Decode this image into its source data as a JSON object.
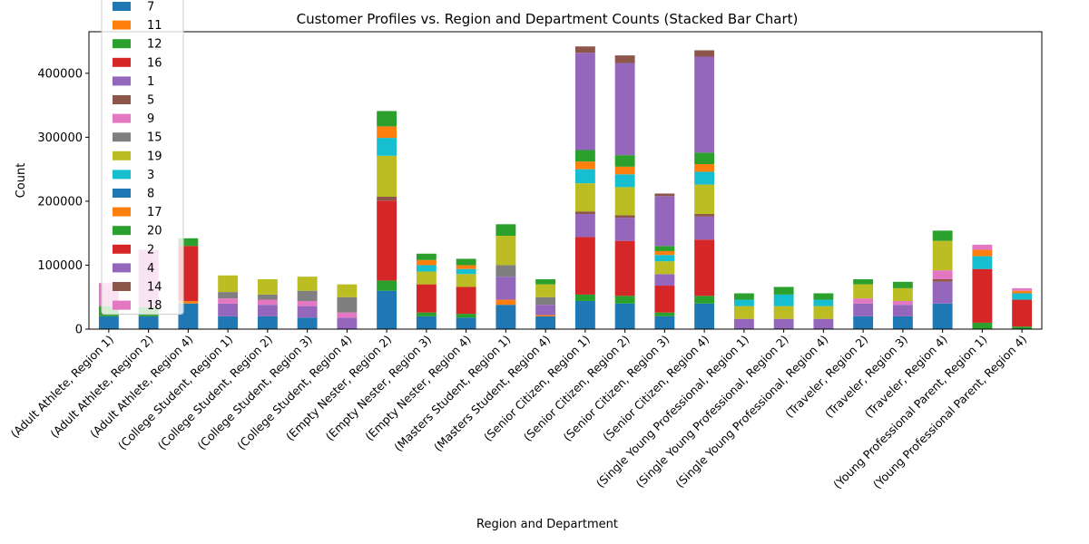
{
  "chart_data": {
    "type": "bar",
    "stacked": true,
    "title": "Customer Profiles vs. Region and Department Counts (Stacked Bar Chart)",
    "xlabel": "Region and Department",
    "ylabel": "Count",
    "ylim": [
      0,
      465000
    ],
    "yticks": [
      0,
      100000,
      200000,
      300000,
      400000
    ],
    "grid": false,
    "legend_position": "upper-left",
    "categories": [
      "(Adult Athlete, Region 1)",
      "(Adult Athlete, Region 2)",
      "(Adult Athlete, Region 4)",
      "(College Student, Region 1)",
      "(College Student, Region 2)",
      "(College Student, Region 3)",
      "(College Student, Region 4)",
      "(Empty Nester, Region 2)",
      "(Empty Nester, Region 3)",
      "(Empty Nester, Region 4)",
      "(Masters Student, Region 1)",
      "(Masters Student, Region 4)",
      "(Senior Citizen, Region 1)",
      "(Senior Citizen, Region 2)",
      "(Senior Citizen, Region 3)",
      "(Senior Citizen, Region 4)",
      "(Single Young Professional, Region 1)",
      "(Single Young Professional, Region 2)",
      "(Single Young Professional, Region 4)",
      "(Traveler, Region 2)",
      "(Traveler, Region 3)",
      "(Traveler, Region 4)",
      "(Young Professional Parent, Region 1)",
      "(Young Professional Parent, Region 4)"
    ],
    "series": [
      {
        "name": "7",
        "color": "#1f77b4",
        "values": [
          20000,
          20000,
          40000,
          20000,
          20000,
          18000,
          0,
          60000,
          20000,
          18000,
          38000,
          20000,
          44000,
          40000,
          20000,
          40000,
          0,
          0,
          0,
          20000,
          20000,
          40000,
          0,
          0
        ]
      },
      {
        "name": "11",
        "color": "#ff7f0e",
        "values": [
          0,
          0,
          4000,
          0,
          0,
          0,
          0,
          0,
          0,
          0,
          8000,
          2000,
          0,
          0,
          0,
          0,
          0,
          0,
          0,
          0,
          0,
          0,
          0,
          0
        ]
      },
      {
        "name": "12",
        "color": "#2ca02c",
        "values": [
          0,
          0,
          0,
          0,
          0,
          0,
          0,
          16000,
          6000,
          6000,
          0,
          0,
          10000,
          12000,
          6000,
          12000,
          0,
          0,
          0,
          0,
          0,
          0,
          10000,
          4000
        ]
      },
      {
        "name": "16",
        "color": "#d62728",
        "values": [
          0,
          0,
          86000,
          0,
          0,
          0,
          0,
          125000,
          44000,
          42000,
          0,
          0,
          90000,
          86000,
          42000,
          88000,
          0,
          0,
          0,
          0,
          0,
          0,
          84000,
          42000
        ]
      },
      {
        "name": "1",
        "color": "#9467bd",
        "values": [
          0,
          0,
          0,
          20000,
          18000,
          18000,
          18000,
          0,
          0,
          0,
          36000,
          16000,
          36000,
          36000,
          18000,
          36000,
          16000,
          16000,
          16000,
          20000,
          18000,
          34000,
          0,
          0
        ]
      },
      {
        "name": "5",
        "color": "#8c564b",
        "values": [
          0,
          0,
          0,
          0,
          0,
          0,
          0,
          6000,
          0,
          0,
          0,
          0,
          4000,
          4000,
          0,
          4000,
          0,
          0,
          0,
          0,
          0,
          4000,
          0,
          0
        ]
      },
      {
        "name": "9",
        "color": "#e377c2",
        "values": [
          0,
          0,
          0,
          8000,
          8000,
          8000,
          8000,
          0,
          0,
          0,
          0,
          0,
          0,
          0,
          0,
          0,
          0,
          0,
          0,
          8000,
          6000,
          14000,
          0,
          0
        ]
      },
      {
        "name": "15",
        "color": "#7f7f7f",
        "values": [
          0,
          0,
          0,
          10000,
          8000,
          16000,
          24000,
          0,
          0,
          0,
          18000,
          12000,
          0,
          0,
          0,
          0,
          0,
          0,
          0,
          0,
          0,
          0,
          0,
          0
        ]
      },
      {
        "name": "19",
        "color": "#bcbd22",
        "values": [
          0,
          0,
          0,
          26000,
          24000,
          22000,
          20000,
          64000,
          20000,
          20000,
          46000,
          20000,
          44000,
          44000,
          20000,
          46000,
          20000,
          20000,
          20000,
          22000,
          20000,
          46000,
          0,
          0
        ]
      },
      {
        "name": "3",
        "color": "#17becf",
        "values": [
          0,
          0,
          0,
          0,
          0,
          0,
          0,
          28000,
          10000,
          8000,
          0,
          0,
          22000,
          20000,
          10000,
          20000,
          10000,
          18000,
          10000,
          0,
          0,
          0,
          20000,
          10000
        ]
      },
      {
        "name": "8",
        "color": "#1f77b4",
        "values": [
          0,
          0,
          0,
          0,
          0,
          0,
          0,
          0,
          0,
          0,
          0,
          0,
          0,
          0,
          0,
          0,
          0,
          0,
          0,
          0,
          0,
          0,
          0,
          0
        ]
      },
      {
        "name": "17",
        "color": "#ff7f0e",
        "values": [
          0,
          0,
          0,
          0,
          0,
          0,
          0,
          18000,
          8000,
          6000,
          0,
          0,
          12000,
          12000,
          6000,
          12000,
          0,
          0,
          0,
          0,
          0,
          0,
          10000,
          4000
        ]
      },
      {
        "name": "20",
        "color": "#2ca02c",
        "values": [
          16000,
          14000,
          12000,
          0,
          0,
          0,
          0,
          24000,
          10000,
          10000,
          18000,
          8000,
          18000,
          18000,
          8000,
          18000,
          10000,
          12000,
          10000,
          8000,
          10000,
          16000,
          0,
          0
        ]
      },
      {
        "name": "2",
        "color": "#d62728",
        "values": [
          0,
          0,
          0,
          0,
          0,
          0,
          0,
          0,
          0,
          0,
          0,
          0,
          0,
          0,
          0,
          0,
          0,
          0,
          0,
          0,
          0,
          0,
          0,
          0
        ]
      },
      {
        "name": "4",
        "color": "#9467bd",
        "values": [
          0,
          0,
          0,
          0,
          0,
          0,
          0,
          0,
          0,
          0,
          0,
          0,
          152000,
          144000,
          78000,
          150000,
          0,
          0,
          0,
          0,
          0,
          0,
          0,
          0
        ]
      },
      {
        "name": "14",
        "color": "#8c564b",
        "values": [
          0,
          0,
          0,
          0,
          0,
          0,
          0,
          0,
          0,
          0,
          0,
          0,
          10000,
          12000,
          4000,
          10000,
          0,
          0,
          0,
          0,
          0,
          0,
          0,
          0
        ]
      },
      {
        "name": "18",
        "color": "#e377c2",
        "values": [
          36000,
          90000,
          0,
          0,
          0,
          0,
          0,
          0,
          0,
          0,
          0,
          0,
          0,
          0,
          0,
          0,
          0,
          0,
          0,
          0,
          0,
          0,
          8000,
          4000
        ]
      }
    ]
  }
}
